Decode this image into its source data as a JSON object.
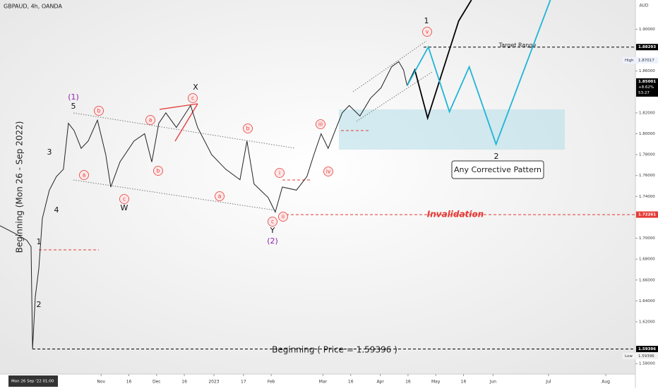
{
  "chart_data": {
    "type": "line",
    "title": "GBPAUD, 4h, OANDA",
    "currency": "AUD",
    "xlim": [
      -18.7,
      325
    ],
    "ylim": [
      1.57,
      1.928
    ],
    "yticks": [
      {
        "value": 1.58,
        "label": "1.58000"
      },
      {
        "value": 1.62,
        "label": "1.62000"
      },
      {
        "value": 1.64,
        "label": "1.64000"
      },
      {
        "value": 1.66,
        "label": "1.66000"
      },
      {
        "value": 1.68,
        "label": "1.68000"
      },
      {
        "value": 1.7,
        "label": "1.70000"
      },
      {
        "value": 1.74,
        "label": "1.74000"
      },
      {
        "value": 1.76,
        "label": "1.76000"
      },
      {
        "value": 1.78,
        "label": "1.78000"
      },
      {
        "value": 1.8,
        "label": "1.80000"
      },
      {
        "value": 1.82,
        "label": "1.82000"
      },
      {
        "value": 1.86,
        "label": "1.86000"
      },
      {
        "value": 1.9,
        "label": "1.90000"
      }
    ],
    "xticks": [
      {
        "value": 36,
        "label": "Nov"
      },
      {
        "value": 51,
        "label": "16"
      },
      {
        "value": 66,
        "label": "Dec"
      },
      {
        "value": 81,
        "label": "16"
      },
      {
        "value": 97,
        "label": "2023"
      },
      {
        "value": 113,
        "label": "17"
      },
      {
        "value": 128,
        "label": "Feb"
      },
      {
        "value": 156,
        "label": "Mar"
      },
      {
        "value": 171,
        "label": "16"
      },
      {
        "value": 187,
        "label": "Apr"
      },
      {
        "value": 202,
        "label": "16"
      },
      {
        "value": 217,
        "label": "May"
      },
      {
        "value": 232,
        "label": "16"
      },
      {
        "value": 248,
        "label": "Jun"
      },
      {
        "value": 278,
        "label": "Jul"
      },
      {
        "value": 309,
        "label": "Aug"
      }
    ],
    "cursor_label": "Mon 26 Sep '22   01:00",
    "series": [
      {
        "color": "#222222",
        "x": [
          -18.7,
          -11.1,
          -4.2,
          -1.9,
          -1.1,
          0.4,
          2.3,
          4.2,
          8.0,
          11.8,
          15.6,
          18.3,
          21.4,
          25.2,
          29.0,
          34.0,
          38.5,
          41.2,
          46.2,
          53.8,
          59.5,
          63.4,
          67.2,
          71.0,
          76.7,
          84.4,
          88.2,
          95.8,
          103.4,
          111.1,
          114.9,
          118.7,
          126.3,
          130.2,
          134.0,
          141.6,
          147.3,
          151.1,
          155.0,
          158.8,
          162.6,
          166.4,
          170.2,
          176.0,
          181.7,
          187.4,
          193.1,
          197.0,
          199.6,
          201.5
        ],
        "values": [
          1.712,
          1.705,
          1.698,
          1.692,
          1.594,
          1.644,
          1.671,
          1.719,
          1.746,
          1.759,
          1.766,
          1.81,
          1.803,
          1.786,
          1.793,
          1.813,
          1.78,
          1.749,
          1.773,
          1.793,
          1.8,
          1.773,
          1.81,
          1.82,
          1.806,
          1.827,
          1.806,
          1.78,
          1.766,
          1.756,
          1.793,
          1.752,
          1.739,
          1.725,
          1.749,
          1.746,
          1.759,
          1.78,
          1.8,
          1.786,
          1.803,
          1.82,
          1.827,
          1.817,
          1.834,
          1.844,
          1.864,
          1.869,
          1.861,
          1.846
        ]
      },
      {
        "color": "#000000",
        "x": [
          201.5,
          205.7,
          212.6,
          229.4,
          236.3
        ],
        "values": [
          1.846,
          1.861,
          1.815,
          1.908,
          1.928
        ]
      },
      {
        "color": "#1fb5d6",
        "x": [
          201.5,
          213.0,
          224.4,
          235.1,
          249.6,
          279.0
        ],
        "values": [
          1.846,
          1.883,
          1.821,
          1.864,
          1.79,
          1.928
        ]
      }
    ],
    "price_labels": [
      {
        "value": 1.88293,
        "label": "1.88293",
        "color": "#000000"
      },
      {
        "value": 1.85001,
        "label": "1.85001",
        "color": "#000000",
        "change": "+8.62%",
        "countdown": "53:27"
      },
      {
        "value": 1.72261,
        "label": "1.72261",
        "color": "#e53935"
      },
      {
        "value": 1.59396,
        "label": "1.59396",
        "color": "#000000"
      }
    ],
    "high": {
      "label": "High",
      "value": 1.87017,
      "value_label": "1.87017"
    },
    "low": {
      "label": "Low",
      "value": 1.59396,
      "value_label": "1.59396"
    },
    "annotations": {
      "target": "Target Range",
      "corrective": "Any Corrective Pattern",
      "invalidation": "Invalidation",
      "beginning": "Beginning ( Price = 1.59396 )",
      "beginning_vertical": "Beginning (Mon 26 - Sep 2022)",
      "waves": [
        "(1)",
        "5",
        "3",
        "4",
        "1",
        "2",
        "X",
        "W",
        "Y",
        "(2)",
        "1",
        "2"
      ],
      "circled": [
        "b",
        "a",
        "c",
        "a",
        "b",
        "c",
        "b",
        "a",
        "c",
        "ii",
        "i",
        "iii",
        "iv",
        "v"
      ]
    }
  }
}
